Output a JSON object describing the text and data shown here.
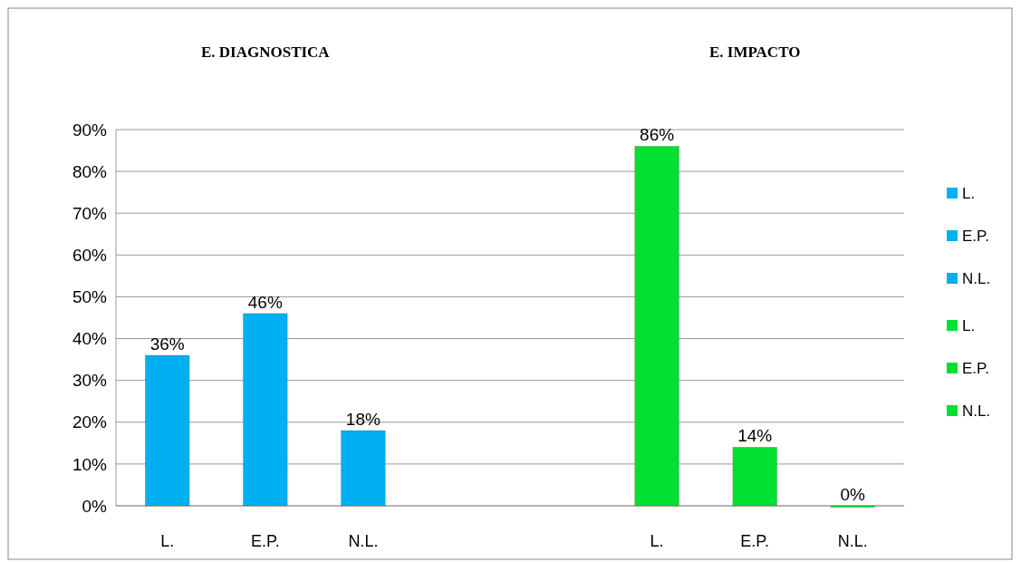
{
  "chart_data": {
    "type": "bar",
    "annotations": [
      "E. DIAGNOSTICA",
      "E. IMPACTO"
    ],
    "categories": [
      "L.",
      "E.P.",
      "N.L.",
      null,
      null,
      "L.",
      "E.P.",
      "N.L."
    ],
    "series": [
      {
        "name": "L.",
        "color": "#00b0f0",
        "values": [
          36,
          null,
          null,
          null,
          null,
          null,
          null,
          null
        ],
        "value_labels": [
          "36%",
          null,
          null,
          null,
          null,
          null,
          null,
          null
        ]
      },
      {
        "name": "E.P.",
        "color": "#00b0f0",
        "values": [
          null,
          46,
          null,
          null,
          null,
          null,
          null,
          null
        ],
        "value_labels": [
          null,
          "46%",
          null,
          null,
          null,
          null,
          null,
          null
        ]
      },
      {
        "name": "N.L.",
        "color": "#00b0f0",
        "values": [
          null,
          null,
          18,
          null,
          null,
          null,
          null,
          null
        ],
        "value_labels": [
          null,
          null,
          "18%",
          null,
          null,
          null,
          null,
          null
        ]
      },
      {
        "name": "L.",
        "color": "#00e031",
        "values": [
          null,
          null,
          null,
          null,
          null,
          86,
          null,
          null
        ],
        "value_labels": [
          null,
          null,
          null,
          null,
          null,
          "86%",
          null,
          null
        ]
      },
      {
        "name": "E.P.",
        "color": "#00e031",
        "values": [
          null,
          null,
          null,
          null,
          null,
          null,
          14,
          null
        ],
        "value_labels": [
          null,
          null,
          null,
          null,
          null,
          null,
          "14%",
          null
        ]
      },
      {
        "name": "N.L.",
        "color": "#00e031",
        "values": [
          null,
          null,
          null,
          null,
          null,
          null,
          null,
          0
        ],
        "value_labels": [
          null,
          null,
          null,
          null,
          null,
          null,
          null,
          "0%"
        ]
      }
    ],
    "ylim": [
      0,
      90
    ],
    "yticks": [
      {
        "value": 0,
        "label": "0%"
      },
      {
        "value": 10,
        "label": "10%"
      },
      {
        "value": 20,
        "label": "20%"
      },
      {
        "value": 30,
        "label": "30%"
      },
      {
        "value": 40,
        "label": "40%"
      },
      {
        "value": 50,
        "label": "50%"
      },
      {
        "value": 60,
        "label": "60%"
      },
      {
        "value": 70,
        "label": "70%"
      },
      {
        "value": 80,
        "label": "80%"
      },
      {
        "value": 90,
        "label": "90%"
      }
    ],
    "grid": "y",
    "legend": "right"
  }
}
